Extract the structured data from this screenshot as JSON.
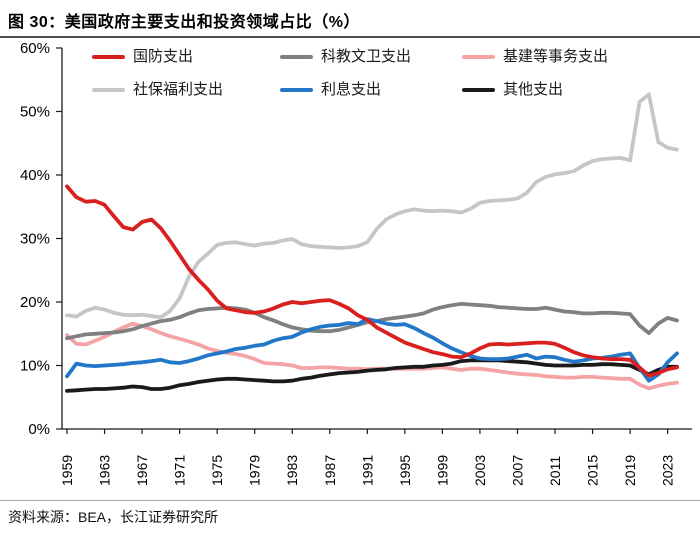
{
  "page": {
    "title": "图 30：美国政府主要支出和投资领域占比（%）",
    "source": "资料来源：BEA，长江证券研究所"
  },
  "chart_data": {
    "type": "line",
    "title": "美国政府主要支出和投资领域占比（%）",
    "xlabel": "",
    "ylabel": "",
    "ylim": [
      0,
      60
    ],
    "yticks": [
      0,
      10,
      20,
      30,
      40,
      50,
      60
    ],
    "ytick_labels": [
      "0%",
      "10%",
      "20%",
      "30%",
      "40%",
      "50%",
      "60%"
    ],
    "xticks": [
      1959,
      1963,
      1967,
      1971,
      1975,
      1979,
      1983,
      1987,
      1991,
      1995,
      1999,
      2003,
      2007,
      2011,
      2015,
      2019,
      2023
    ],
    "xtick_labels": [
      "1959",
      "1963",
      "1967",
      "1971",
      "1975",
      "1979",
      "1983",
      "1987",
      "1991",
      "1995",
      "1999",
      "2003",
      "2007",
      "2011",
      "2015",
      "2019",
      "2023"
    ],
    "grid": false,
    "legend_position": "top-inside",
    "axis_color": "#1a1a1a",
    "x": [
      1959,
      1960,
      1961,
      1962,
      1963,
      1964,
      1965,
      1966,
      1967,
      1968,
      1969,
      1970,
      1971,
      1972,
      1973,
      1974,
      1975,
      1976,
      1977,
      1978,
      1979,
      1980,
      1981,
      1982,
      1983,
      1984,
      1985,
      1986,
      1987,
      1988,
      1989,
      1990,
      1991,
      1992,
      1993,
      1994,
      1995,
      1996,
      1997,
      1998,
      1999,
      2000,
      2001,
      2002,
      2003,
      2004,
      2005,
      2006,
      2007,
      2008,
      2009,
      2010,
      2011,
      2012,
      2013,
      2014,
      2015,
      2016,
      2017,
      2018,
      2019,
      2020,
      2021,
      2022,
      2023,
      2024
    ],
    "series": [
      {
        "name": "国防支出",
        "color": "#d9201f",
        "z": 6,
        "values": [
          38.2,
          36.5,
          35.8,
          35.9,
          35.3,
          33.5,
          31.8,
          31.4,
          32.6,
          33.0,
          31.6,
          29.6,
          27.4,
          25.2,
          23.5,
          22.0,
          20.2,
          19.0,
          18.7,
          18.4,
          18.3,
          18.5,
          19.0,
          19.6,
          20.0,
          19.8,
          20.0,
          20.2,
          20.3,
          19.7,
          19.0,
          17.9,
          17.2,
          16.0,
          15.2,
          14.4,
          13.6,
          13.1,
          12.6,
          12.1,
          11.8,
          11.4,
          11.3,
          11.9,
          12.7,
          13.3,
          13.4,
          13.3,
          13.4,
          13.5,
          13.6,
          13.6,
          13.4,
          12.8,
          12.1,
          11.6,
          11.3,
          11.1,
          11.0,
          11.0,
          10.9,
          9.7,
          8.4,
          8.8,
          9.4,
          9.7
        ]
      },
      {
        "name": "科教文卫支出",
        "color": "#808080",
        "z": 3,
        "values": [
          14.3,
          14.6,
          14.9,
          15.0,
          15.1,
          15.2,
          15.4,
          15.7,
          16.2,
          16.6,
          17.0,
          17.2,
          17.6,
          18.2,
          18.7,
          18.9,
          19.0,
          19.1,
          19.0,
          18.8,
          18.3,
          17.6,
          17.1,
          16.5,
          16.0,
          15.7,
          15.5,
          15.4,
          15.4,
          15.6,
          16.0,
          16.4,
          16.8,
          17.0,
          17.3,
          17.5,
          17.7,
          17.9,
          18.2,
          18.8,
          19.2,
          19.5,
          19.7,
          19.6,
          19.5,
          19.4,
          19.2,
          19.1,
          19.0,
          18.9,
          18.9,
          19.1,
          18.8,
          18.5,
          18.4,
          18.2,
          18.2,
          18.3,
          18.3,
          18.2,
          18.1,
          16.3,
          15.1,
          16.6,
          17.5,
          17.1
        ]
      },
      {
        "name": "基建等事务支出",
        "color": "#f4a3a6",
        "z": 2,
        "values": [
          14.8,
          13.4,
          13.3,
          13.9,
          14.5,
          15.3,
          16.0,
          16.6,
          16.2,
          15.7,
          15.1,
          14.6,
          14.2,
          13.8,
          13.3,
          12.7,
          12.3,
          12.0,
          11.8,
          11.5,
          11.0,
          10.4,
          10.3,
          10.2,
          10.0,
          9.6,
          9.6,
          9.7,
          9.7,
          9.6,
          9.5,
          9.5,
          9.4,
          9.5,
          9.5,
          9.5,
          9.5,
          9.5,
          9.5,
          9.6,
          9.7,
          9.5,
          9.3,
          9.5,
          9.5,
          9.3,
          9.1,
          8.9,
          8.7,
          8.6,
          8.5,
          8.3,
          8.2,
          8.1,
          8.1,
          8.2,
          8.2,
          8.1,
          8.0,
          7.9,
          7.9,
          7.0,
          6.4,
          6.8,
          7.1,
          7.3
        ]
      },
      {
        "name": "社保福利支出",
        "color": "#c6c6c6",
        "z": 1,
        "values": [
          17.9,
          17.7,
          18.6,
          19.1,
          18.8,
          18.3,
          18.0,
          17.9,
          18.0,
          17.8,
          17.6,
          18.6,
          20.6,
          24.0,
          26.3,
          27.6,
          29.0,
          29.3,
          29.4,
          29.1,
          28.9,
          29.2,
          29.3,
          29.7,
          29.9,
          29.1,
          28.8,
          28.7,
          28.6,
          28.5,
          28.6,
          28.8,
          29.4,
          31.5,
          33.0,
          33.8,
          34.3,
          34.6,
          34.4,
          34.3,
          34.4,
          34.3,
          34.1,
          34.7,
          35.6,
          35.9,
          36.0,
          36.1,
          36.3,
          37.2,
          38.9,
          39.7,
          40.1,
          40.3,
          40.6,
          41.5,
          42.2,
          42.5,
          42.6,
          42.7,
          42.3,
          51.5,
          52.7,
          45.2,
          44.3,
          44.0
        ]
      },
      {
        "name": "利息支出",
        "color": "#2277c8",
        "z": 5,
        "values": [
          8.3,
          10.3,
          10.0,
          9.9,
          10.0,
          10.1,
          10.2,
          10.4,
          10.5,
          10.7,
          10.9,
          10.5,
          10.4,
          10.7,
          11.1,
          11.6,
          11.9,
          12.2,
          12.6,
          12.8,
          13.1,
          13.3,
          13.9,
          14.3,
          14.5,
          15.2,
          15.7,
          16.1,
          16.3,
          16.4,
          16.7,
          16.5,
          17.3,
          17.0,
          16.6,
          16.4,
          16.5,
          15.9,
          15.1,
          14.4,
          13.5,
          12.7,
          12.1,
          11.5,
          11.1,
          11.0,
          11.0,
          11.1,
          11.4,
          11.7,
          11.1,
          11.4,
          11.3,
          10.9,
          10.6,
          10.8,
          11.1,
          11.2,
          11.4,
          11.7,
          11.9,
          9.6,
          7.6,
          8.6,
          10.5,
          11.9
        ]
      },
      {
        "name": "其他支出",
        "color": "#1a1a1a",
        "z": 4,
        "values": [
          6.0,
          6.1,
          6.2,
          6.3,
          6.3,
          6.4,
          6.5,
          6.7,
          6.6,
          6.3,
          6.3,
          6.5,
          6.9,
          7.1,
          7.4,
          7.6,
          7.8,
          7.9,
          7.9,
          7.8,
          7.7,
          7.6,
          7.5,
          7.5,
          7.6,
          7.9,
          8.1,
          8.4,
          8.6,
          8.8,
          8.9,
          9.0,
          9.2,
          9.3,
          9.4,
          9.6,
          9.7,
          9.8,
          9.8,
          10.0,
          10.1,
          10.3,
          10.7,
          10.8,
          10.8,
          10.8,
          10.8,
          10.7,
          10.6,
          10.5,
          10.3,
          10.1,
          10.0,
          10.0,
          10.0,
          10.1,
          10.1,
          10.2,
          10.2,
          10.1,
          10.0,
          9.3,
          8.6,
          9.3,
          9.8,
          9.8
        ]
      }
    ]
  }
}
